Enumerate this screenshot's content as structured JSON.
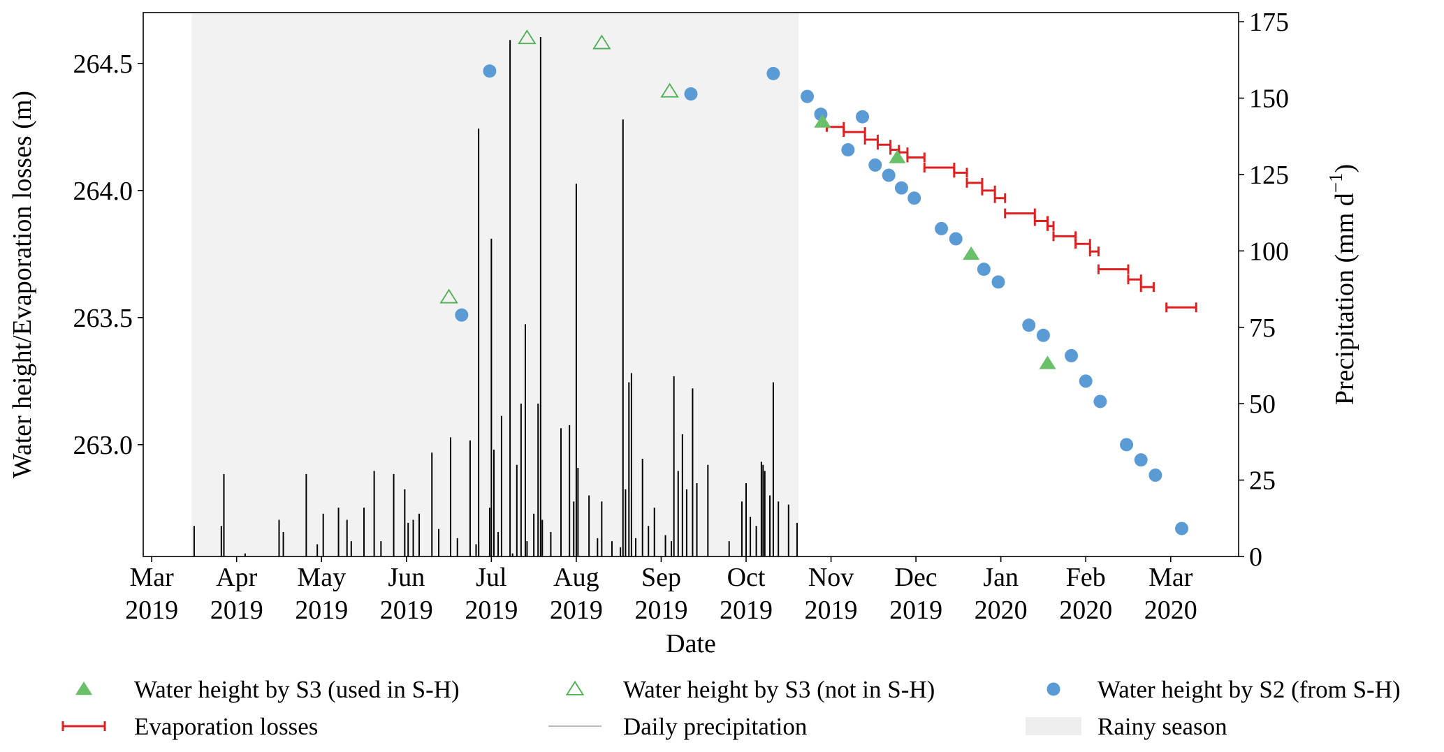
{
  "chart_data": {
    "type": "scatter+bar",
    "title": "",
    "xlabel": "Date",
    "ylabel_left": "Water height/Evaporation losses (m)",
    "ylabel_right": "Precipitation (mm d",
    "ylabel_right_unit": "−1",
    "ylabel_right_close": ")",
    "x_range": [
      -0.1,
      12.8
    ],
    "ylim_left": [
      262.56,
      264.7
    ],
    "ylim_right": [
      0,
      178
    ],
    "x_ticks": [
      {
        "x": 0,
        "line1": "Mar",
        "line2": "2019"
      },
      {
        "x": 1,
        "line1": "Apr",
        "line2": "2019"
      },
      {
        "x": 2,
        "line1": "May",
        "line2": "2019"
      },
      {
        "x": 3,
        "line1": "Jun",
        "line2": "2019"
      },
      {
        "x": 4,
        "line1": "Jul",
        "line2": "2019"
      },
      {
        "x": 5,
        "line1": "Aug",
        "line2": "2019"
      },
      {
        "x": 6,
        "line1": "Sep",
        "line2": "2019"
      },
      {
        "x": 7,
        "line1": "Oct",
        "line2": "2019"
      },
      {
        "x": 8,
        "line1": "Nov",
        "line2": "2019"
      },
      {
        "x": 9,
        "line1": "Dec",
        "line2": "2019"
      },
      {
        "x": 10,
        "line1": "Jan",
        "line2": "2020"
      },
      {
        "x": 11,
        "line1": "Feb",
        "line2": "2020"
      },
      {
        "x": 12,
        "line1": "Mar",
        "line2": "2020"
      }
    ],
    "y_left_ticks": [
      {
        "v": 263.0,
        "label": "263.0"
      },
      {
        "v": 263.5,
        "label": "263.5"
      },
      {
        "v": 264.0,
        "label": "264.0"
      },
      {
        "v": 264.5,
        "label": "264.5"
      }
    ],
    "y_right_ticks": [
      {
        "v": 0,
        "label": "0"
      },
      {
        "v": 25,
        "label": "25"
      },
      {
        "v": 50,
        "label": "50"
      },
      {
        "v": 75,
        "label": "75"
      },
      {
        "v": 100,
        "label": "100"
      },
      {
        "v": 125,
        "label": "125"
      },
      {
        "v": 150,
        "label": "150"
      },
      {
        "v": 175,
        "label": "175"
      }
    ],
    "rainy_season": {
      "start": 0.47,
      "end": 7.62
    },
    "series": [
      {
        "name": "Water height by S3 (used in S-H)",
        "marker": "triangle-filled",
        "color": "#6abf69",
        "points": [
          [
            7.9,
            264.27
          ],
          [
            8.78,
            264.13
          ],
          [
            9.65,
            263.75
          ],
          [
            10.55,
            263.32
          ]
        ]
      },
      {
        "name": "Water height by S3 (not in S-H)",
        "marker": "triangle-open",
        "color": "#4caf50",
        "points": [
          [
            3.5,
            263.58
          ],
          [
            4.42,
            264.6
          ],
          [
            5.3,
            264.58
          ],
          [
            6.1,
            264.39
          ]
        ]
      },
      {
        "name": "Water height by S2 (from S-H)",
        "marker": "circle",
        "color": "#5b9bd5",
        "points": [
          [
            3.65,
            263.51
          ],
          [
            3.98,
            264.47
          ],
          [
            6.35,
            264.38
          ],
          [
            7.32,
            264.46
          ],
          [
            7.72,
            264.37
          ],
          [
            7.88,
            264.3
          ],
          [
            8.2,
            264.16
          ],
          [
            8.37,
            264.29
          ],
          [
            8.52,
            264.1
          ],
          [
            8.68,
            264.06
          ],
          [
            8.83,
            264.01
          ],
          [
            8.98,
            263.97
          ],
          [
            9.3,
            263.85
          ],
          [
            9.47,
            263.81
          ],
          [
            9.8,
            263.69
          ],
          [
            9.97,
            263.64
          ],
          [
            10.33,
            263.47
          ],
          [
            10.5,
            263.43
          ],
          [
            10.83,
            263.35
          ],
          [
            11.0,
            263.25
          ],
          [
            11.17,
            263.17
          ],
          [
            11.48,
            263.0
          ],
          [
            11.65,
            262.94
          ],
          [
            11.82,
            262.88
          ],
          [
            12.13,
            262.67
          ]
        ]
      },
      {
        "name": "Evaporation losses",
        "marker": "errorbar-h",
        "color": "#e02020",
        "segments": [
          [
            7.95,
            8.15,
            264.25
          ],
          [
            8.15,
            8.4,
            264.23
          ],
          [
            8.4,
            8.55,
            264.2
          ],
          [
            8.55,
            8.7,
            264.18
          ],
          [
            8.7,
            8.8,
            264.16
          ],
          [
            8.8,
            8.9,
            264.15
          ],
          [
            8.9,
            9.1,
            264.13
          ],
          [
            9.1,
            9.45,
            264.09
          ],
          [
            9.45,
            9.6,
            264.07
          ],
          [
            9.6,
            9.78,
            264.03
          ],
          [
            9.78,
            9.93,
            264.0
          ],
          [
            9.93,
            10.05,
            263.97
          ],
          [
            10.05,
            10.4,
            263.91
          ],
          [
            10.4,
            10.55,
            263.88
          ],
          [
            10.55,
            10.62,
            263.86
          ],
          [
            10.62,
            10.88,
            263.82
          ],
          [
            10.88,
            11.05,
            263.79
          ],
          [
            11.05,
            11.15,
            263.76
          ],
          [
            11.15,
            11.5,
            263.69
          ],
          [
            11.5,
            11.65,
            263.65
          ],
          [
            11.65,
            11.8,
            263.62
          ],
          [
            11.95,
            12.3,
            263.54
          ]
        ]
      }
    ],
    "precipitation": {
      "name": "Daily precipitation",
      "color": "#000000",
      "x": [
        0.5,
        0.82,
        0.85,
        1.1,
        1.5,
        1.55,
        1.82,
        1.95,
        2.02,
        2.2,
        2.3,
        2.35,
        2.5,
        2.62,
        2.7,
        2.85,
        2.98,
        3.02,
        3.08,
        3.15,
        3.3,
        3.38,
        3.52,
        3.6,
        3.75,
        3.82,
        3.85,
        3.98,
        4.03,
        4.08,
        4.12,
        4.25,
        4.3,
        4.35,
        4.42,
        4.5,
        4.55,
        4.6,
        4.7,
        4.82,
        4.92,
        4.97,
        5.02,
        5.15,
        5.25,
        5.3,
        5.42,
        5.52,
        5.58,
        5.62,
        5.65,
        5.7,
        5.78,
        5.85,
        5.92,
        6.05,
        6.12,
        6.2,
        6.25,
        6.3,
        6.37,
        6.42,
        6.55,
        6.8,
        6.95,
        7.0,
        7.05,
        7.12,
        7.18,
        7.2,
        7.22,
        7.28,
        7.32,
        7.38,
        7.5,
        7.6
      ],
      "values": [
        10,
        10,
        27,
        1,
        12,
        8,
        27,
        4,
        14,
        16,
        12,
        5,
        16,
        28,
        5,
        27,
        22,
        11,
        12,
        14,
        34,
        9,
        39,
        6,
        38,
        4,
        5,
        16,
        35,
        8,
        46,
        1,
        30,
        50,
        5,
        14,
        50,
        12,
        8,
        42,
        43,
        18,
        29,
        20,
        6,
        18,
        5,
        3,
        22,
        57,
        60,
        6,
        32,
        10,
        16,
        7,
        5,
        28,
        40,
        22,
        55,
        24,
        30,
        5,
        18,
        24,
        13,
        10,
        31,
        30,
        28,
        20,
        57,
        18,
        17,
        11
      ],
      "tall_x": [
        3.85,
        4.0,
        4.22,
        4.4,
        4.58,
        5.0,
        5.55,
        6.15
      ],
      "tall_values": [
        140,
        104,
        169,
        76,
        170,
        122,
        143,
        59
      ]
    },
    "legend": {
      "items": [
        {
          "label": "Water height by S3 (used in S-H)",
          "marker": "triangle-filled",
          "color": "#6abf69"
        },
        {
          "label": "Water height by S3 (not in S-H)",
          "marker": "triangle-open",
          "color": "#4caf50"
        },
        {
          "label": "Water height by S2 (from S-H)",
          "marker": "circle",
          "color": "#5b9bd5"
        },
        {
          "label": "Evaporation losses",
          "marker": "errorbar-h",
          "color": "#e02020"
        },
        {
          "label": "Daily precipitation",
          "marker": "line",
          "color": "#bbbbbb"
        },
        {
          "label": "Rainy season",
          "marker": "patch",
          "color": "#eeeeee"
        }
      ],
      "placement": "bottom"
    }
  }
}
